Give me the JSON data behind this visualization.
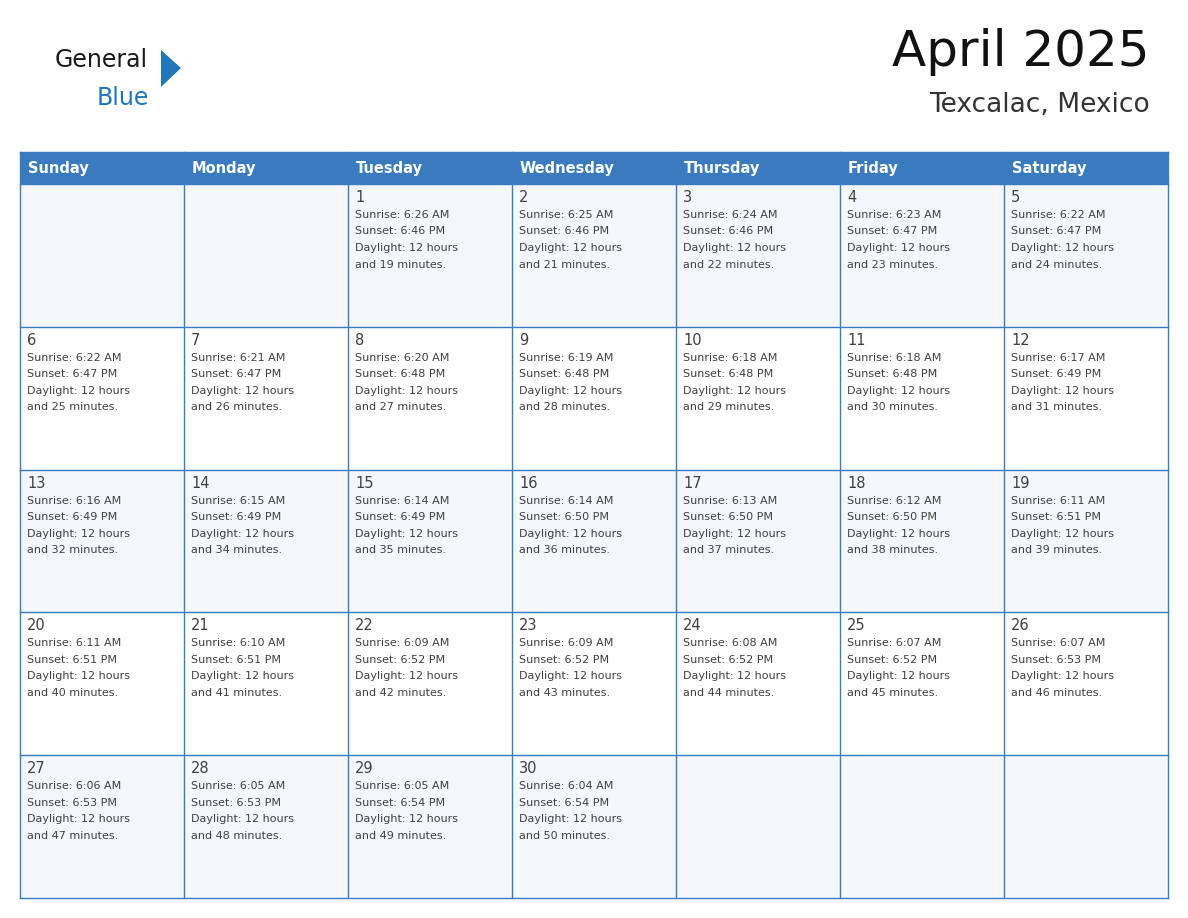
{
  "title": "April 2025",
  "subtitle": "Texcalac, Mexico",
  "header_color": "#3a7bbf",
  "header_text_color": "#ffffff",
  "border_color": "#3a7bbf",
  "day_names": [
    "Sunday",
    "Monday",
    "Tuesday",
    "Wednesday",
    "Thursday",
    "Friday",
    "Saturday"
  ],
  "text_color": "#404040",
  "logo_general_color": "#1a1a1a",
  "logo_blue_color": "#2277bb",
  "days": [
    {
      "day": 1,
      "col": 2,
      "row": 0,
      "sunrise": "6:26 AM",
      "sunset": "6:46 PM",
      "daylight_hours": 12,
      "daylight_minutes": 19
    },
    {
      "day": 2,
      "col": 3,
      "row": 0,
      "sunrise": "6:25 AM",
      "sunset": "6:46 PM",
      "daylight_hours": 12,
      "daylight_minutes": 21
    },
    {
      "day": 3,
      "col": 4,
      "row": 0,
      "sunrise": "6:24 AM",
      "sunset": "6:46 PM",
      "daylight_hours": 12,
      "daylight_minutes": 22
    },
    {
      "day": 4,
      "col": 5,
      "row": 0,
      "sunrise": "6:23 AM",
      "sunset": "6:47 PM",
      "daylight_hours": 12,
      "daylight_minutes": 23
    },
    {
      "day": 5,
      "col": 6,
      "row": 0,
      "sunrise": "6:22 AM",
      "sunset": "6:47 PM",
      "daylight_hours": 12,
      "daylight_minutes": 24
    },
    {
      "day": 6,
      "col": 0,
      "row": 1,
      "sunrise": "6:22 AM",
      "sunset": "6:47 PM",
      "daylight_hours": 12,
      "daylight_minutes": 25
    },
    {
      "day": 7,
      "col": 1,
      "row": 1,
      "sunrise": "6:21 AM",
      "sunset": "6:47 PM",
      "daylight_hours": 12,
      "daylight_minutes": 26
    },
    {
      "day": 8,
      "col": 2,
      "row": 1,
      "sunrise": "6:20 AM",
      "sunset": "6:48 PM",
      "daylight_hours": 12,
      "daylight_minutes": 27
    },
    {
      "day": 9,
      "col": 3,
      "row": 1,
      "sunrise": "6:19 AM",
      "sunset": "6:48 PM",
      "daylight_hours": 12,
      "daylight_minutes": 28
    },
    {
      "day": 10,
      "col": 4,
      "row": 1,
      "sunrise": "6:18 AM",
      "sunset": "6:48 PM",
      "daylight_hours": 12,
      "daylight_minutes": 29
    },
    {
      "day": 11,
      "col": 5,
      "row": 1,
      "sunrise": "6:18 AM",
      "sunset": "6:48 PM",
      "daylight_hours": 12,
      "daylight_minutes": 30
    },
    {
      "day": 12,
      "col": 6,
      "row": 1,
      "sunrise": "6:17 AM",
      "sunset": "6:49 PM",
      "daylight_hours": 12,
      "daylight_minutes": 31
    },
    {
      "day": 13,
      "col": 0,
      "row": 2,
      "sunrise": "6:16 AM",
      "sunset": "6:49 PM",
      "daylight_hours": 12,
      "daylight_minutes": 32
    },
    {
      "day": 14,
      "col": 1,
      "row": 2,
      "sunrise": "6:15 AM",
      "sunset": "6:49 PM",
      "daylight_hours": 12,
      "daylight_minutes": 34
    },
    {
      "day": 15,
      "col": 2,
      "row": 2,
      "sunrise": "6:14 AM",
      "sunset": "6:49 PM",
      "daylight_hours": 12,
      "daylight_minutes": 35
    },
    {
      "day": 16,
      "col": 3,
      "row": 2,
      "sunrise": "6:14 AM",
      "sunset": "6:50 PM",
      "daylight_hours": 12,
      "daylight_minutes": 36
    },
    {
      "day": 17,
      "col": 4,
      "row": 2,
      "sunrise": "6:13 AM",
      "sunset": "6:50 PM",
      "daylight_hours": 12,
      "daylight_minutes": 37
    },
    {
      "day": 18,
      "col": 5,
      "row": 2,
      "sunrise": "6:12 AM",
      "sunset": "6:50 PM",
      "daylight_hours": 12,
      "daylight_minutes": 38
    },
    {
      "day": 19,
      "col": 6,
      "row": 2,
      "sunrise": "6:11 AM",
      "sunset": "6:51 PM",
      "daylight_hours": 12,
      "daylight_minutes": 39
    },
    {
      "day": 20,
      "col": 0,
      "row": 3,
      "sunrise": "6:11 AM",
      "sunset": "6:51 PM",
      "daylight_hours": 12,
      "daylight_minutes": 40
    },
    {
      "day": 21,
      "col": 1,
      "row": 3,
      "sunrise": "6:10 AM",
      "sunset": "6:51 PM",
      "daylight_hours": 12,
      "daylight_minutes": 41
    },
    {
      "day": 22,
      "col": 2,
      "row": 3,
      "sunrise": "6:09 AM",
      "sunset": "6:52 PM",
      "daylight_hours": 12,
      "daylight_minutes": 42
    },
    {
      "day": 23,
      "col": 3,
      "row": 3,
      "sunrise": "6:09 AM",
      "sunset": "6:52 PM",
      "daylight_hours": 12,
      "daylight_minutes": 43
    },
    {
      "day": 24,
      "col": 4,
      "row": 3,
      "sunrise": "6:08 AM",
      "sunset": "6:52 PM",
      "daylight_hours": 12,
      "daylight_minutes": 44
    },
    {
      "day": 25,
      "col": 5,
      "row": 3,
      "sunrise": "6:07 AM",
      "sunset": "6:52 PM",
      "daylight_hours": 12,
      "daylight_minutes": 45
    },
    {
      "day": 26,
      "col": 6,
      "row": 3,
      "sunrise": "6:07 AM",
      "sunset": "6:53 PM",
      "daylight_hours": 12,
      "daylight_minutes": 46
    },
    {
      "day": 27,
      "col": 0,
      "row": 4,
      "sunrise": "6:06 AM",
      "sunset": "6:53 PM",
      "daylight_hours": 12,
      "daylight_minutes": 47
    },
    {
      "day": 28,
      "col": 1,
      "row": 4,
      "sunrise": "6:05 AM",
      "sunset": "6:53 PM",
      "daylight_hours": 12,
      "daylight_minutes": 48
    },
    {
      "day": 29,
      "col": 2,
      "row": 4,
      "sunrise": "6:05 AM",
      "sunset": "6:54 PM",
      "daylight_hours": 12,
      "daylight_minutes": 49
    },
    {
      "day": 30,
      "col": 3,
      "row": 4,
      "sunrise": "6:04 AM",
      "sunset": "6:54 PM",
      "daylight_hours": 12,
      "daylight_minutes": 50
    }
  ]
}
